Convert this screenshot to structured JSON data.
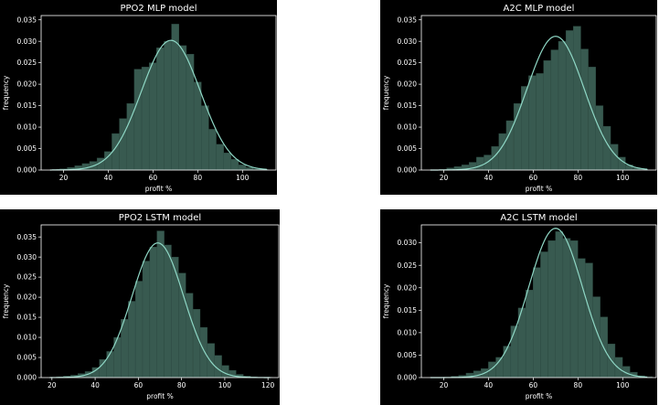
{
  "chart_data": [
    {
      "type": "histogram",
      "title": "PPO2 MLP model",
      "xlabel": "profit %",
      "ylabel": "frequency",
      "xlim": [
        10,
        115
      ],
      "ylim": [
        0,
        0.036
      ],
      "xticks": [
        20,
        40,
        60,
        80,
        100
      ],
      "xtick_labels": [
        "20",
        "40",
        "60",
        "80",
        "100"
      ],
      "yticks": [
        0.0,
        0.005,
        0.01,
        0.015,
        0.02,
        0.025,
        0.03,
        0.035
      ],
      "ytick_labels": [
        "0.000",
        "0.005",
        "0.010",
        "0.015",
        "0.020",
        "0.025",
        "0.030",
        "0.035"
      ],
      "bins": {
        "start": 15,
        "width": 3.33,
        "values": [
          0.0002,
          0.0003,
          0.0006,
          0.001,
          0.0015,
          0.002,
          0.0028,
          0.0043,
          0.0085,
          0.012,
          0.0155,
          0.0235,
          0.024,
          0.025,
          0.0285,
          0.03,
          0.034,
          0.029,
          0.027,
          0.0205,
          0.015,
          0.0095,
          0.006,
          0.004,
          0.0025,
          0.0012,
          0.0006,
          0.0003,
          0.0001
        ]
      },
      "kde": {
        "mean": 68,
        "sd": 13.2,
        "scale": 1.0
      },
      "colors": {
        "bar": "#385a50",
        "edge": "#2d4a42",
        "kde": "#8fd8c6"
      }
    },
    {
      "type": "histogram",
      "title": "A2C MLP model",
      "xlabel": "profit %",
      "ylabel": "frequency",
      "xlim": [
        10,
        115
      ],
      "ylim": [
        0,
        0.036
      ],
      "xticks": [
        20,
        40,
        60,
        80,
        100
      ],
      "xtick_labels": [
        "20",
        "40",
        "60",
        "80",
        "100"
      ],
      "yticks": [
        0.0,
        0.005,
        0.01,
        0.015,
        0.02,
        0.025,
        0.03,
        0.035
      ],
      "ytick_labels": [
        "0.000",
        "0.005",
        "0.010",
        "0.015",
        "0.020",
        "0.025",
        "0.030",
        "0.035"
      ],
      "bins": {
        "start": 18,
        "width": 3.33,
        "values": [
          0.0002,
          0.0005,
          0.0008,
          0.0012,
          0.0018,
          0.003,
          0.0035,
          0.0055,
          0.0085,
          0.0115,
          0.0155,
          0.0195,
          0.022,
          0.0225,
          0.0255,
          0.028,
          0.03,
          0.0325,
          0.0335,
          0.0282,
          0.024,
          0.015,
          0.0102,
          0.006,
          0.003,
          0.0012,
          0.0005,
          0.0002
        ]
      },
      "kde": {
        "mean": 70,
        "sd": 12.8,
        "scale": 1.0
      },
      "colors": {
        "bar": "#385a50",
        "edge": "#2d4a42",
        "kde": "#8fd8c6"
      }
    },
    {
      "type": "histogram",
      "title": "PPO2 LSTM model",
      "xlabel": "profit %",
      "ylabel": "frequency",
      "xlim": [
        15,
        125
      ],
      "ylim": [
        0,
        0.038
      ],
      "xticks": [
        20,
        40,
        60,
        80,
        100,
        120
      ],
      "xtick_labels": [
        "20",
        "40",
        "60",
        "80",
        "100",
        "120"
      ],
      "yticks": [
        0.0,
        0.005,
        0.01,
        0.015,
        0.02,
        0.025,
        0.03,
        0.035
      ],
      "ytick_labels": [
        "0.000",
        "0.005",
        "0.010",
        "0.015",
        "0.020",
        "0.025",
        "0.030",
        "0.035"
      ],
      "bins": {
        "start": 22,
        "width": 3.33,
        "values": [
          0.0002,
          0.0004,
          0.0006,
          0.001,
          0.0015,
          0.0025,
          0.0045,
          0.0065,
          0.01,
          0.0145,
          0.019,
          0.024,
          0.029,
          0.0325,
          0.0365,
          0.033,
          0.03,
          0.026,
          0.021,
          0.017,
          0.0125,
          0.0085,
          0.0055,
          0.003,
          0.0018,
          0.0008,
          0.0004,
          0.0002,
          0.0001,
          0.0001
        ]
      },
      "kde": {
        "mean": 69,
        "sd": 11.9,
        "scale": 1.0
      },
      "colors": {
        "bar": "#385a50",
        "edge": "#2d4a42",
        "kde": "#8fd8c6"
      }
    },
    {
      "type": "histogram",
      "title": "A2C LSTM model",
      "xlabel": "profit %",
      "ylabel": "frequency",
      "xlim": [
        10,
        115
      ],
      "ylim": [
        0,
        0.034
      ],
      "xticks": [
        20,
        40,
        60,
        80,
        100
      ],
      "xtick_labels": [
        "20",
        "40",
        "60",
        "80",
        "100"
      ],
      "yticks": [
        0.0,
        0.005,
        0.01,
        0.015,
        0.02,
        0.025,
        0.03
      ],
      "ytick_labels": [
        "0.000",
        "0.005",
        "0.010",
        "0.015",
        "0.020",
        "0.025",
        "0.030"
      ],
      "bins": {
        "start": 20,
        "width": 3.33,
        "values": [
          0.0001,
          0.0003,
          0.0005,
          0.001,
          0.0015,
          0.002,
          0.0035,
          0.0045,
          0.007,
          0.0115,
          0.0155,
          0.0195,
          0.0245,
          0.028,
          0.0305,
          0.0325,
          0.031,
          0.0305,
          0.0265,
          0.0255,
          0.018,
          0.0135,
          0.0075,
          0.0045,
          0.0025,
          0.0012,
          0.0004,
          0.0002
        ]
      },
      "kde": {
        "mean": 70,
        "sd": 12.0,
        "scale": 1.0
      },
      "colors": {
        "bar": "#385a50",
        "edge": "#2d4a42",
        "kde": "#8fd8c6"
      }
    }
  ]
}
